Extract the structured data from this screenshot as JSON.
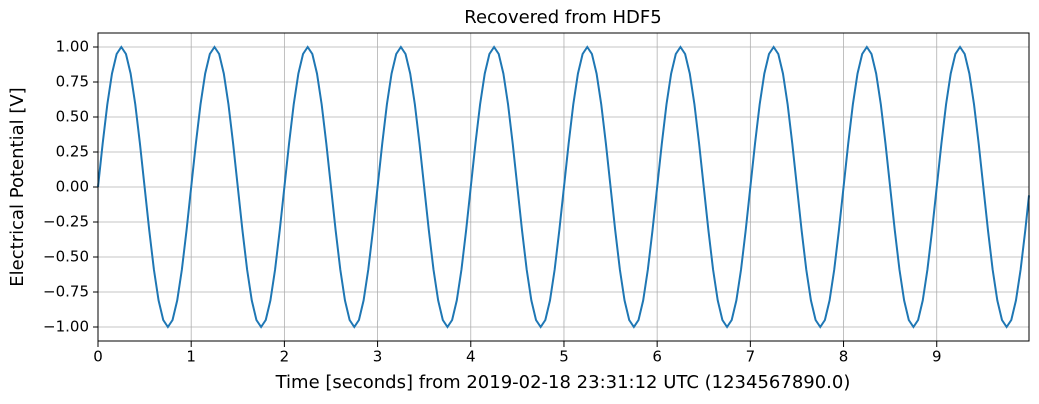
{
  "chart_data": {
    "type": "line",
    "title": "Recovered from HDF5",
    "x_label": "Time [seconds] from 2019-02-18 23:31:12 UTC (1234567890.0)",
    "y_label": "Electrical Potential [V]",
    "color": "#1f77b4",
    "grid": true,
    "xlim": [
      0,
      9.99
    ],
    "ylim": [
      -1.1,
      1.1
    ],
    "xticks": [
      0,
      1,
      2,
      3,
      4,
      5,
      6,
      7,
      8,
      9
    ],
    "yticks": [
      {
        "value": -1,
        "label": "−1.00"
      },
      {
        "value": -0.75,
        "label": "−0.75"
      },
      {
        "value": -0.5,
        "label": "−0.50"
      },
      {
        "value": -0.25,
        "label": "−0.25"
      },
      {
        "value": 0,
        "label": "0.00"
      },
      {
        "value": 0.25,
        "label": "0.25"
      },
      {
        "value": 0.5,
        "label": "0.50"
      },
      {
        "value": 0.75,
        "label": "0.75"
      },
      {
        "value": 1,
        "label": "1.00"
      }
    ],
    "x": [
      0,
      0.05,
      0.1,
      0.15,
      0.2,
      0.25,
      0.3,
      0.35,
      0.4,
      0.45,
      0.5,
      0.55,
      0.6,
      0.65,
      0.7,
      0.75,
      0.8,
      0.85,
      0.9,
      0.95,
      1,
      1.05,
      1.1,
      1.15,
      1.2,
      1.25,
      1.3,
      1.35,
      1.4,
      1.45,
      1.5,
      1.55,
      1.6,
      1.65,
      1.7,
      1.75,
      1.8,
      1.85,
      1.9,
      1.95,
      2,
      2.05,
      2.1,
      2.15,
      2.2,
      2.25,
      2.3,
      2.35,
      2.4,
      2.45,
      2.5,
      2.55,
      2.6,
      2.65,
      2.7,
      2.75,
      2.8,
      2.85,
      2.9,
      2.95,
      3,
      3.05,
      3.1,
      3.15,
      3.2,
      3.25,
      3.3,
      3.35,
      3.4,
      3.45,
      3.5,
      3.55,
      3.6,
      3.65,
      3.7,
      3.75,
      3.8,
      3.85,
      3.9,
      3.95,
      4,
      4.05,
      4.1,
      4.15,
      4.2,
      4.25,
      4.3,
      4.35,
      4.4,
      4.45,
      4.5,
      4.55,
      4.6,
      4.65,
      4.7,
      4.75,
      4.8,
      4.85,
      4.9,
      4.95,
      5,
      5.05,
      5.1,
      5.15,
      5.2,
      5.25,
      5.3,
      5.35,
      5.4,
      5.45,
      5.5,
      5.55,
      5.6,
      5.65,
      5.7,
      5.75,
      5.8,
      5.85,
      5.9,
      5.95,
      6,
      6.05,
      6.1,
      6.15,
      6.2,
      6.25,
      6.3,
      6.35,
      6.4,
      6.45,
      6.5,
      6.55,
      6.6,
      6.65,
      6.7,
      6.75,
      6.8,
      6.85,
      6.9,
      6.95,
      7,
      7.05,
      7.1,
      7.15,
      7.2,
      7.25,
      7.3,
      7.35,
      7.4,
      7.45,
      7.5,
      7.55,
      7.6,
      7.65,
      7.7,
      7.75,
      7.8,
      7.85,
      7.9,
      7.95,
      8,
      8.05,
      8.1,
      8.15,
      8.2,
      8.25,
      8.3,
      8.35,
      8.4,
      8.45,
      8.5,
      8.55,
      8.6,
      8.65,
      8.7,
      8.75,
      8.8,
      8.85,
      8.9,
      8.95,
      9,
      9.05,
      9.1,
      9.15,
      9.2,
      9.25,
      9.3,
      9.35,
      9.4,
      9.45,
      9.5,
      9.55,
      9.6,
      9.65,
      9.7,
      9.75,
      9.8,
      9.85,
      9.9,
      9.95,
      9.99
    ],
    "values": [
      0,
      0.31,
      0.59,
      0.81,
      0.95,
      1,
      0.95,
      0.81,
      0.59,
      0.31,
      0,
      -0.31,
      -0.59,
      -0.81,
      -0.95,
      -1,
      -0.95,
      -0.81,
      -0.59,
      -0.31,
      0,
      0.31,
      0.59,
      0.81,
      0.95,
      1,
      0.95,
      0.81,
      0.59,
      0.31,
      0,
      -0.31,
      -0.59,
      -0.81,
      -0.95,
      -1,
      -0.95,
      -0.81,
      -0.59,
      -0.31,
      0,
      0.31,
      0.59,
      0.81,
      0.95,
      1,
      0.95,
      0.81,
      0.59,
      0.31,
      0,
      -0.31,
      -0.59,
      -0.81,
      -0.95,
      -1,
      -0.95,
      -0.81,
      -0.59,
      -0.31,
      0,
      0.31,
      0.59,
      0.81,
      0.95,
      1,
      0.95,
      0.81,
      0.59,
      0.31,
      0,
      -0.31,
      -0.59,
      -0.81,
      -0.95,
      -1,
      -0.95,
      -0.81,
      -0.59,
      -0.31,
      0,
      0.31,
      0.59,
      0.81,
      0.95,
      1,
      0.95,
      0.81,
      0.59,
      0.31,
      0,
      -0.31,
      -0.59,
      -0.81,
      -0.95,
      -1,
      -0.95,
      -0.81,
      -0.59,
      -0.31,
      0,
      0.31,
      0.59,
      0.81,
      0.95,
      1,
      0.95,
      0.81,
      0.59,
      0.31,
      0,
      -0.31,
      -0.59,
      -0.81,
      -0.95,
      -1,
      -0.95,
      -0.81,
      -0.59,
      -0.31,
      0,
      0.31,
      0.59,
      0.81,
      0.95,
      1,
      0.95,
      0.81,
      0.59,
      0.31,
      0,
      -0.31,
      -0.59,
      -0.81,
      -0.95,
      -1,
      -0.95,
      -0.81,
      -0.59,
      -0.31,
      0,
      0.31,
      0.59,
      0.81,
      0.95,
      1,
      0.95,
      0.81,
      0.59,
      0.31,
      0,
      -0.31,
      -0.59,
      -0.81,
      -0.95,
      -1,
      -0.95,
      -0.81,
      -0.59,
      -0.31,
      0,
      0.31,
      0.59,
      0.81,
      0.95,
      1,
      0.95,
      0.81,
      0.59,
      0.31,
      0,
      -0.31,
      -0.59,
      -0.81,
      -0.95,
      -1,
      -0.95,
      -0.81,
      -0.59,
      -0.31,
      0,
      0.31,
      0.59,
      0.81,
      0.95,
      1,
      0.95,
      0.81,
      0.59,
      0.31,
      0,
      -0.31,
      -0.59,
      -0.81,
      -0.95,
      -1,
      -0.95,
      -0.81,
      -0.59,
      -0.31,
      -0.06
    ]
  }
}
